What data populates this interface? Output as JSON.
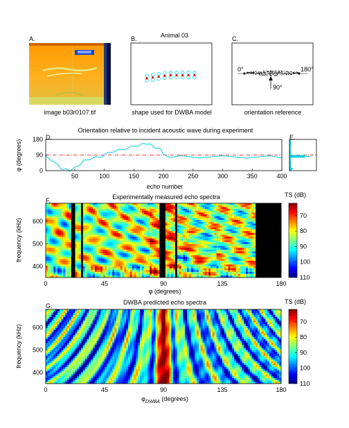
{
  "panels": {
    "A": {
      "letter": "A.",
      "caption": "image b03r0107.tif"
    },
    "B": {
      "letter": "B.",
      "title": "Animal 03",
      "caption": "shape used for DWBA model"
    },
    "C": {
      "letter": "C.",
      "caption": "orientation reference",
      "left_angle": "0°",
      "right_angle": "180°",
      "arrow_angle": "90°"
    },
    "D": {
      "letter": "D.",
      "title": "Orientation relative to incident acoustic wave during experiment"
    },
    "E": {
      "letter": "E."
    },
    "F": {
      "letter": "F.",
      "title": "Experimentally measured echo spectra",
      "colorbar_label": "TS (dB)"
    },
    "G": {
      "letter": "G.",
      "title": "DWBA predicted echo spectra",
      "colorbar_label": "TS (dB)"
    }
  },
  "chart_data": [
    {
      "id": "orientation",
      "type": "line",
      "title": "Orientation relative to incident acoustic wave during experiment",
      "xlabel": "echo number",
      "ylabel": "φ (degrees)",
      "xlim": [
        1,
        400
      ],
      "ylim": [
        0,
        180
      ],
      "xticks": [
        "50",
        "100",
        "150",
        "200",
        "250",
        "300",
        "350",
        "400"
      ],
      "yticks": [
        "0",
        "90",
        "180"
      ],
      "reference_line": 90,
      "series": [
        {
          "color": "#00d0e0",
          "x": [
            1,
            10,
            20,
            28,
            35,
            42,
            50,
            58,
            65,
            75,
            85,
            95,
            105,
            115,
            125,
            135,
            145,
            155,
            165,
            172,
            178,
            185,
            195,
            200,
            203,
            210,
            230,
            260,
            300,
            340,
            380,
            400
          ],
          "y": [
            80,
            65,
            35,
            12,
            5,
            3,
            15,
            35,
            55,
            68,
            75,
            82,
            98,
            112,
            118,
            126,
            136,
            145,
            152,
            158,
            148,
            138,
            120,
            100,
            85,
            82,
            80,
            79,
            80,
            78,
            80,
            79
          ]
        }
      ]
    },
    {
      "id": "orientation-histogram",
      "type": "bar",
      "ylim": [
        0,
        180
      ],
      "reference_line": 90
    },
    {
      "id": "measured-spectra",
      "type": "heatmap",
      "title": "Experimentally measured echo spectra",
      "xlabel": "φ (degrees)",
      "ylabel": "frequency (kHz)",
      "xlim": [
        0,
        180
      ],
      "ylim": [
        350,
        680
      ],
      "xticks": [
        "0",
        "45",
        "90",
        "135",
        "180"
      ],
      "yticks": [
        "400",
        "500",
        "600"
      ],
      "colorbar": {
        "label": "TS (dB)",
        "ticks": [
          "70",
          "80",
          "90",
          "100",
          "110"
        ],
        "range": [
          62,
          110
        ]
      },
      "data_xmax": 160,
      "gaps": [
        [
          20,
          22
        ],
        [
          27,
          29
        ],
        [
          87,
          92
        ],
        [
          99,
          101
        ]
      ]
    },
    {
      "id": "predicted-spectra",
      "type": "heatmap",
      "title": "DWBA predicted echo spectra",
      "xlabel": "φ",
      "xlabel_sub": "DWBA",
      "xlabel_unit": " (degrees)",
      "ylabel": "frequency (kHz)",
      "xlim": [
        0,
        180
      ],
      "ylim": [
        350,
        680
      ],
      "xticks": [
        "0",
        "45",
        "90",
        "135",
        "180"
      ],
      "yticks": [
        "400",
        "500",
        "600"
      ],
      "colorbar": {
        "label": "TS (dB)",
        "ticks": [
          "70",
          "80",
          "90",
          "100",
          "110"
        ],
        "range": [
          62,
          110
        ]
      }
    }
  ]
}
